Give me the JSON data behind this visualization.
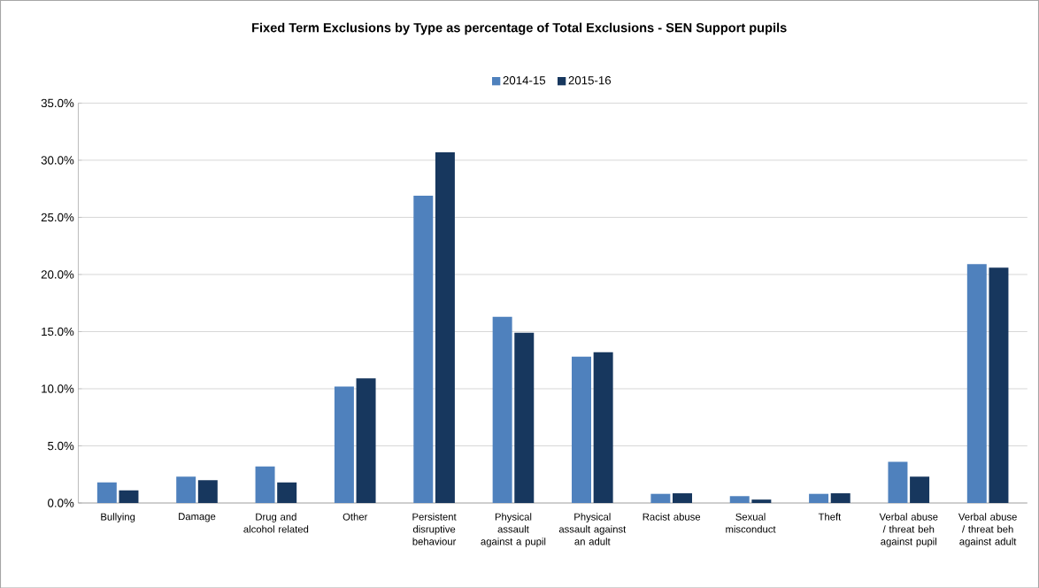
{
  "chart_data": {
    "type": "bar",
    "title": "Fixed Term Exclusions  by Type as percentage of Total Exclusions  - SEN Support pupils",
    "categories": [
      "Bullying",
      "Damage",
      "Drug and alcohol related",
      "Other",
      "Persistent disruptive behaviour",
      "Physical assault against a pupil",
      "Physical assault against an adult",
      "Racist abuse",
      "Sexual misconduct",
      "Theft",
      "Verbal abuse / threat beh against pupil",
      "Verbal abuse / threat beh against adult"
    ],
    "series": [
      {
        "name": "2014-15",
        "color": "#4f81bd",
        "values": [
          1.8,
          2.3,
          3.2,
          10.2,
          26.9,
          16.3,
          12.8,
          0.8,
          0.6,
          0.8,
          3.6,
          20.9
        ]
      },
      {
        "name": "2015-16",
        "color": "#17375e",
        "values": [
          1.1,
          2.0,
          1.8,
          10.9,
          30.7,
          14.9,
          13.2,
          0.85,
          0.3,
          0.85,
          2.3,
          20.6
        ]
      }
    ],
    "ylim": [
      0,
      35
    ],
    "yticks": [
      {
        "value": 0,
        "label": "0.0%"
      },
      {
        "value": 5,
        "label": "5.0%"
      },
      {
        "value": 10,
        "label": "10.0%"
      },
      {
        "value": 15,
        "label": "15.0%"
      },
      {
        "value": 20,
        "label": "20.0%"
      },
      {
        "value": 25,
        "label": "25.0%"
      },
      {
        "value": 30,
        "label": "30.0%"
      },
      {
        "value": 35,
        "label": "35.0%"
      }
    ],
    "grid": "y",
    "legend": "top"
  }
}
